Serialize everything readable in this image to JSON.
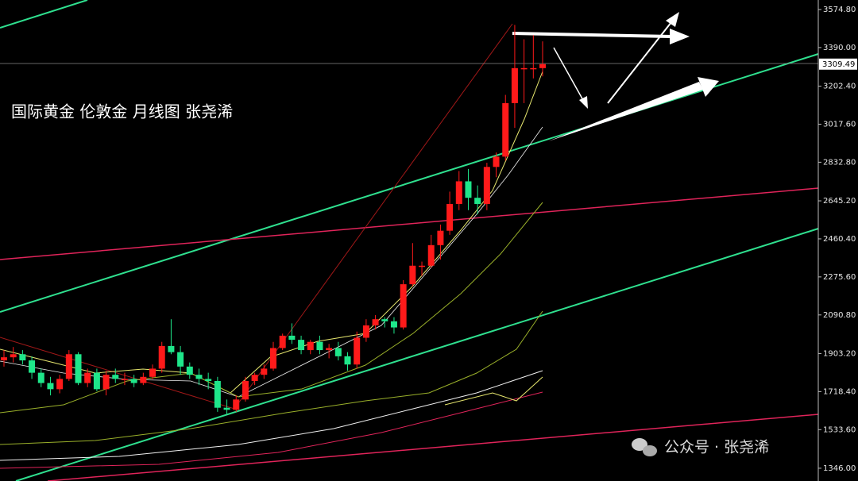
{
  "chart_data": {
    "type": "candlestick",
    "title": "国际黄金 伦敦金 月线图 张尧浠",
    "series": [
      {
        "open": [
          1870,
          1885,
          1900,
          1870,
          1810,
          1760,
          1730,
          1780,
          1900,
          1760,
          1810,
          1730,
          1800,
          1780,
          1780,
          1760,
          1790,
          1830,
          1940,
          1910,
          1840,
          1800,
          1780,
          1770,
          1640,
          1630,
          1680,
          1770,
          1800,
          1830,
          1930,
          1990,
          1970,
          1920,
          1960,
          1920,
          1930,
          1890,
          1850,
          1980,
          2040,
          2070,
          2060,
          2030,
          2240,
          2330,
          2330,
          2430,
          2500,
          2630,
          2740,
          2660,
          2630,
          2810,
          2860,
          3120,
          3290,
          3290,
          3290
        ],
        "high": [
          1920,
          1935,
          1920,
          1890,
          1830,
          1790,
          1800,
          1920,
          1910,
          1830,
          1830,
          1820,
          1830,
          1810,
          1800,
          1810,
          1850,
          1960,
          2070,
          1940,
          1860,
          1830,
          1810,
          1790,
          1680,
          1700,
          1790,
          1810,
          1850,
          1960,
          2000,
          2050,
          1990,
          1970,
          1990,
          1950,
          1960,
          1910,
          2010,
          2070,
          2090,
          2080,
          2080,
          2260,
          2440,
          2350,
          2480,
          2530,
          2690,
          2790,
          2800,
          2720,
          2830,
          2880,
          3160,
          3500,
          3430,
          3450,
          3420
        ],
        "low": [
          1840,
          1860,
          1850,
          1780,
          1740,
          1700,
          1710,
          1770,
          1750,
          1740,
          1720,
          1700,
          1760,
          1750,
          1740,
          1750,
          1780,
          1810,
          1900,
          1800,
          1780,
          1750,
          1730,
          1620,
          1610,
          1620,
          1670,
          1750,
          1780,
          1820,
          1920,
          1950,
          1900,
          1900,
          1900,
          1880,
          1870,
          1820,
          1830,
          1960,
          2020,
          2030,
          2000,
          2020,
          2230,
          2280,
          2320,
          2360,
          2480,
          2600,
          2600,
          2580,
          2600,
          2760,
          2840,
          3000,
          3120,
          3240,
          3250
        ],
        "close": [
          1885,
          1900,
          1870,
          1810,
          1760,
          1730,
          1780,
          1900,
          1760,
          1810,
          1730,
          1800,
          1780,
          1780,
          1760,
          1790,
          1830,
          1940,
          1910,
          1840,
          1800,
          1780,
          1770,
          1640,
          1630,
          1680,
          1770,
          1800,
          1830,
          1930,
          1990,
          1970,
          1920,
          1960,
          1920,
          1930,
          1890,
          1850,
          1980,
          2040,
          2070,
          2060,
          2030,
          2240,
          2330,
          2330,
          2430,
          2500,
          2630,
          2740,
          2660,
          2630,
          2810,
          2860,
          3120,
          3290,
          3290,
          3290,
          3309.49
        ]
      }
    ],
    "up_color": "#ff1a1a",
    "down_color": "#1ee68a",
    "ylim": [
      1284,
      3621
    ],
    "yticks": [
      {
        "value": 3574.8,
        "label": "3574.80"
      },
      {
        "value": 3390,
        "label": "3390.00"
      },
      {
        "value": 3202.4,
        "label": "3202.40"
      },
      {
        "value": 3017.6,
        "label": "3017.60"
      },
      {
        "value": 2832.8,
        "label": "2832.80"
      },
      {
        "value": 2645.2,
        "label": "2645.20"
      },
      {
        "value": 2460.4,
        "label": "2460.40"
      },
      {
        "value": 2275.6,
        "label": "2275.60"
      },
      {
        "value": 2090.8,
        "label": "2090.80"
      },
      {
        "value": 1903.2,
        "label": "1903.20"
      },
      {
        "value": 1718.4,
        "label": "1718.40"
      },
      {
        "value": 1533.6,
        "label": "1533.60"
      },
      {
        "value": 1346,
        "label": "1346.00"
      }
    ],
    "last_price": 3309.49
  },
  "watermark": "公众号 · 张尧浠"
}
